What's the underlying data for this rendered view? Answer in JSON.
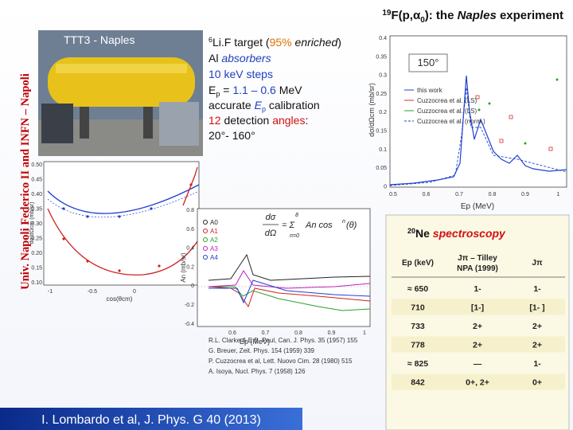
{
  "title": [
    "19",
    "F(p,",
    "α",
    "0",
    "): the ",
    "Naples",
    " experiment"
  ],
  "side_label": "Univ. Napoli Federico II and INFN – Napoli",
  "photo_label": "TTT3 - Naples",
  "bullets": [
    [
      "6",
      "Li.F target (",
      "95%",
      " ",
      "enriched",
      ")"
    ],
    [
      "Al ",
      "absorbers"
    ],
    [
      "10 keV steps"
    ],
    [
      "E",
      "p",
      " = ",
      "1.1 – 0.6",
      " MeV"
    ],
    [
      "accurate ",
      "E",
      "p",
      " calibration"
    ],
    [
      "12",
      " detection ",
      "angles",
      ":"
    ],
    [
      "20°- 160°"
    ]
  ],
  "plot_excitation": {
    "angle": "150°",
    "yticks": [
      "0.4",
      "0.35",
      "0.3",
      "0.25",
      "0.2",
      "0.15",
      "0.1",
      "0.05",
      "0"
    ],
    "xticks": [
      "0.5",
      "0.6",
      "0.7",
      "0.8",
      "0.9",
      "1"
    ],
    "xlabel": "Ep (MeV)",
    "ylabel": "dσ/dΩcm (mb/sr)",
    "legend": [
      "this work",
      "Cuzzocrea et al. (LS)",
      "Cuzzocrea et al. (LS)",
      "Cuzzocrea et al. (norm.)"
    ]
  },
  "plot_angular": {
    "yticks": [
      "0.50",
      "0.45",
      "0.40",
      "0.35",
      "0.30",
      "0.25",
      "0.20",
      "0.15",
      "0.10"
    ],
    "xticks": [
      "-1",
      "-0.5",
      "0"
    ],
    "xlabel": "cos(θcm)",
    "ylabel": "dσ/dΩcm (mb/sr)"
  },
  "plot_legendre": {
    "yticks": [
      "0.8",
      "0.6",
      "0.4",
      "0.2",
      "0",
      "-0.2",
      "-0.4"
    ],
    "xticks": [
      "0.6",
      "0.7",
      "0.8",
      "0.9",
      "1"
    ],
    "xlabel": "Ep (MeV)",
    "ylabel": "An (mb/sr)",
    "legend": [
      "A0",
      "A1",
      "A2",
      "A3",
      "A4"
    ],
    "formula": [
      "dσ",
      "dΩ",
      "= Σ",
      "8",
      "n=0",
      "An cos",
      "n",
      "(θ)"
    ]
  },
  "references": [
    "R.L. Clarke & E.B. Paul, Can. J. Phys. 35 (1957) 155",
    "G. Breuer, Zeit. Phys. 154 (1959) 339",
    "P. Cuzzocrea et al, Lett. Nuovo Cim. 28 (1980) 515",
    "A. Isoya, Nucl. Phys. 7 (1958) 126"
  ],
  "citation": "I. Lombardo et al, J. Phys. G 40 (2013)",
  "spectroscopy": {
    "title": [
      "20",
      "Ne",
      " spectroscopy"
    ],
    "header": [
      "Ep (keV)",
      "Jπ – Tilley",
      "NPA (1999)",
      "Jπ"
    ],
    "rows": [
      [
        "≈ 650",
        "1-",
        "1-"
      ],
      [
        "710",
        "[1-]",
        "[1- ]"
      ],
      [
        "733",
        "2+",
        "2+"
      ],
      [
        "778",
        "2+",
        "2+"
      ],
      [
        "≈ 825",
        "—",
        "1-"
      ],
      [
        "842",
        "0+, 2+",
        "0+"
      ]
    ]
  }
}
